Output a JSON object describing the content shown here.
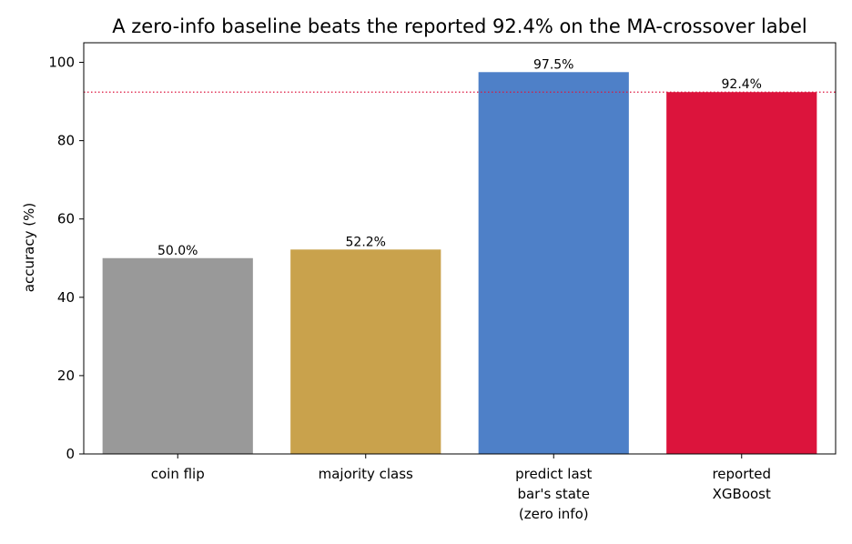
{
  "chart_data": {
    "type": "bar",
    "title": "A zero-info baseline beats the reported 92.4% on the MA-crossover label",
    "xlabel": "",
    "ylabel": "accuracy (%)",
    "ylim": [
      0,
      105
    ],
    "yticks": [
      0,
      20,
      40,
      60,
      80,
      100
    ],
    "grid": false,
    "categories": [
      [
        "coin flip"
      ],
      [
        "majority class"
      ],
      [
        "predict last",
        "bar's state",
        "(zero info)"
      ],
      [
        "reported",
        "XGBoost"
      ]
    ],
    "values": [
      50.0,
      52.2,
      97.5,
      92.4
    ],
    "data_labels": [
      "50.0%",
      "52.2%",
      "97.5%",
      "92.4%"
    ],
    "colors": [
      "#999999",
      "#c9a24c",
      "#4e80c8",
      "#dc143c"
    ],
    "reference_line": {
      "value": 92.4,
      "color": "#dc143c",
      "style": "dotted"
    }
  }
}
